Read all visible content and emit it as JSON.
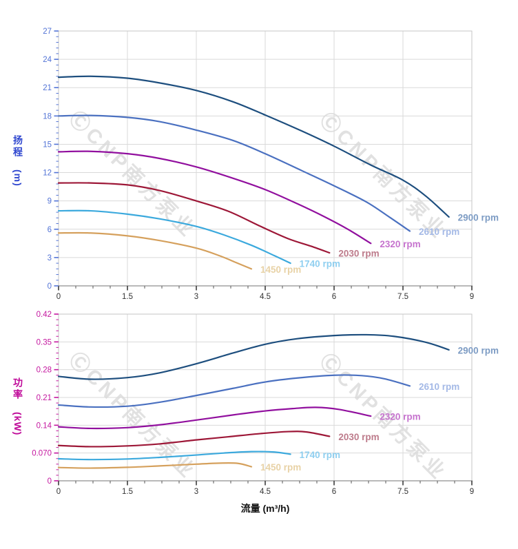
{
  "watermark": {
    "text": "ⒸCNP南方泵业",
    "color": "#dadada"
  },
  "x_axis": {
    "label": "流量 (m³/h)",
    "tick_labels": [
      "0",
      "1.5",
      "3",
      "4.5",
      "6",
      "7.5",
      "9"
    ],
    "tick_values": [
      0,
      1.5,
      3,
      4.5,
      6,
      7.5,
      9
    ],
    "range": [
      0,
      9
    ],
    "tick_color": "#333333",
    "axis_color": "#8f8f8f",
    "grid_color": "#d9d9d9",
    "frame_color": "#c6c6c6"
  },
  "chart_data": [
    {
      "type": "line",
      "id": "head",
      "ylabel": "扬程",
      "yunit": "(m)",
      "title_color": "#2f47cf",
      "tick_color": "#5273d6",
      "ylim": [
        0,
        27
      ],
      "xlim": [
        0,
        9
      ],
      "grid": true,
      "legend_position": "right-of-curve-end",
      "yticks": [
        0,
        3,
        6,
        9,
        12,
        15,
        18,
        21,
        24,
        27
      ],
      "ytick_labels": [
        "0",
        "3",
        "6",
        "9",
        "12",
        "15",
        "18",
        "21",
        "24",
        "27"
      ],
      "series": [
        {
          "name": "2900 rpm",
          "color": "#1d4e7e",
          "label_color": "#7d9cc4",
          "points": [
            [
              0,
              22.1
            ],
            [
              0.7,
              22.2
            ],
            [
              1.5,
              22.0
            ],
            [
              2.2,
              21.5
            ],
            [
              3,
              20.7
            ],
            [
              3.8,
              19.5
            ],
            [
              4.5,
              18.1
            ],
            [
              5.3,
              16.4
            ],
            [
              6,
              14.8
            ],
            [
              6.8,
              12.8
            ],
            [
              7.5,
              11.2
            ],
            [
              8,
              9.5
            ],
            [
              8.5,
              7.3
            ]
          ]
        },
        {
          "name": "2610 rpm",
          "color": "#4a70c0",
          "label_color": "#a4b9e6",
          "points": [
            [
              0,
              18.0
            ],
            [
              0.7,
              18.05
            ],
            [
              1.5,
              17.85
            ],
            [
              2.2,
              17.4
            ],
            [
              3,
              16.5
            ],
            [
              3.8,
              15.4
            ],
            [
              4.5,
              14.0
            ],
            [
              5.3,
              12.2
            ],
            [
              6,
              10.6
            ],
            [
              6.7,
              8.9
            ],
            [
              7.2,
              7.3
            ],
            [
              7.65,
              5.8
            ]
          ]
        },
        {
          "name": "2320 rpm",
          "color": "#910f9e",
          "label_color": "#c673ce",
          "points": [
            [
              0,
              14.2
            ],
            [
              0.7,
              14.25
            ],
            [
              1.5,
              14.0
            ],
            [
              2.2,
              13.5
            ],
            [
              3,
              12.6
            ],
            [
              3.8,
              11.4
            ],
            [
              4.5,
              10.2
            ],
            [
              5.2,
              8.7
            ],
            [
              5.8,
              7.3
            ],
            [
              6.3,
              6.0
            ],
            [
              6.8,
              4.5
            ]
          ]
        },
        {
          "name": "2030 rpm",
          "color": "#9d1737",
          "label_color": "#bd7b8b",
          "points": [
            [
              0,
              10.9
            ],
            [
              0.7,
              10.9
            ],
            [
              1.5,
              10.7
            ],
            [
              2.2,
              10.1
            ],
            [
              3,
              9.0
            ],
            [
              3.7,
              7.9
            ],
            [
              4.4,
              6.3
            ],
            [
              5,
              5.0
            ],
            [
              5.5,
              4.2
            ],
            [
              5.9,
              3.5
            ]
          ]
        },
        {
          "name": "1740 rpm",
          "color": "#3ba9dd",
          "label_color": "#8fcff0",
          "points": [
            [
              0,
              7.95
            ],
            [
              0.7,
              7.95
            ],
            [
              1.5,
              7.6
            ],
            [
              2.2,
              7.1
            ],
            [
              3,
              6.3
            ],
            [
              3.6,
              5.4
            ],
            [
              4.2,
              4.3
            ],
            [
              4.7,
              3.2
            ],
            [
              5.05,
              2.4
            ]
          ]
        },
        {
          "name": "1450 rpm",
          "color": "#d5a05c",
          "label_color": "#e8d2a6",
          "points": [
            [
              0,
              5.6
            ],
            [
              0.7,
              5.6
            ],
            [
              1.5,
              5.3
            ],
            [
              2.2,
              4.8
            ],
            [
              3,
              4.0
            ],
            [
              3.5,
              3.2
            ],
            [
              3.9,
              2.4
            ],
            [
              4.2,
              1.8
            ]
          ]
        }
      ]
    },
    {
      "type": "line",
      "id": "power",
      "ylabel": "功率",
      "yunit": "(kW)",
      "title_color": "#bf0798",
      "tick_color": "#c4169f",
      "ylim": [
        0,
        0.42
      ],
      "xlim": [
        0,
        9
      ],
      "grid": true,
      "legend_position": "right-of-curve-end",
      "yticks": [
        0,
        0.07,
        0.14,
        0.21,
        0.28,
        0.35,
        0.42
      ],
      "ytick_labels": [
        "0",
        "0.070",
        "0.14",
        "0.21",
        "0.28",
        "0.35",
        "0.42"
      ],
      "series": [
        {
          "name": "2900 rpm",
          "color": "#1d4e7e",
          "label_color": "#7d9cc4",
          "points": [
            [
              0,
              0.263
            ],
            [
              0.7,
              0.256
            ],
            [
              1.5,
              0.26
            ],
            [
              2.2,
              0.272
            ],
            [
              3,
              0.295
            ],
            [
              3.8,
              0.322
            ],
            [
              4.5,
              0.344
            ],
            [
              5.2,
              0.358
            ],
            [
              6,
              0.366
            ],
            [
              6.7,
              0.368
            ],
            [
              7.3,
              0.364
            ],
            [
              8,
              0.349
            ],
            [
              8.5,
              0.33
            ]
          ]
        },
        {
          "name": "2610 rpm",
          "color": "#4a70c0",
          "label_color": "#a4b9e6",
          "points": [
            [
              0,
              0.191
            ],
            [
              0.7,
              0.186
            ],
            [
              1.5,
              0.188
            ],
            [
              2.2,
              0.198
            ],
            [
              3,
              0.215
            ],
            [
              3.8,
              0.233
            ],
            [
              4.5,
              0.249
            ],
            [
              5.2,
              0.259
            ],
            [
              6,
              0.266
            ],
            [
              6.6,
              0.265
            ],
            [
              7.1,
              0.257
            ],
            [
              7.65,
              0.239
            ]
          ]
        },
        {
          "name": "2320 rpm",
          "color": "#910f9e",
          "label_color": "#c673ce",
          "points": [
            [
              0,
              0.136
            ],
            [
              0.7,
              0.132
            ],
            [
              1.5,
              0.134
            ],
            [
              2.2,
              0.141
            ],
            [
              3,
              0.153
            ],
            [
              3.8,
              0.166
            ],
            [
              4.5,
              0.176
            ],
            [
              5.1,
              0.182
            ],
            [
              5.6,
              0.185
            ],
            [
              6.1,
              0.18
            ],
            [
              6.8,
              0.163
            ]
          ]
        },
        {
          "name": "2030 rpm",
          "color": "#9d1737",
          "label_color": "#bd7b8b",
          "points": [
            [
              0,
              0.089
            ],
            [
              0.7,
              0.086
            ],
            [
              1.5,
              0.088
            ],
            [
              2.2,
              0.093
            ],
            [
              3,
              0.103
            ],
            [
              3.7,
              0.111
            ],
            [
              4.4,
              0.119
            ],
            [
              5,
              0.124
            ],
            [
              5.4,
              0.123
            ],
            [
              5.9,
              0.112
            ]
          ]
        },
        {
          "name": "1740 rpm",
          "color": "#3ba9dd",
          "label_color": "#8fcff0",
          "points": [
            [
              0,
              0.0555
            ],
            [
              0.7,
              0.0535
            ],
            [
              1.5,
              0.055
            ],
            [
              2.2,
              0.059
            ],
            [
              3,
              0.065
            ],
            [
              3.6,
              0.07
            ],
            [
              4.2,
              0.0735
            ],
            [
              4.7,
              0.0725
            ],
            [
              5.05,
              0.067
            ]
          ]
        },
        {
          "name": "1450 rpm",
          "color": "#d5a05c",
          "label_color": "#e8d2a6",
          "points": [
            [
              0,
              0.0335
            ],
            [
              0.7,
              0.032
            ],
            [
              1.5,
              0.034
            ],
            [
              2.2,
              0.0375
            ],
            [
              3,
              0.042
            ],
            [
              3.5,
              0.0445
            ],
            [
              3.9,
              0.044
            ],
            [
              4.2,
              0.0355
            ]
          ]
        }
      ]
    }
  ]
}
